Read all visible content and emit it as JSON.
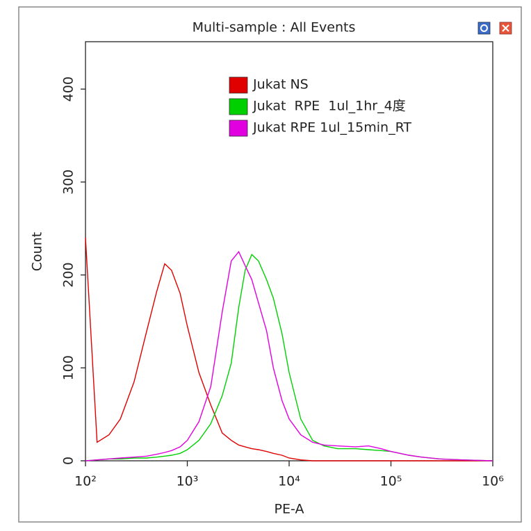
{
  "chart_data": {
    "type": "line",
    "title": "Multi-sample : All Events",
    "xlabel": "PE-A",
    "ylabel": "Count",
    "xscale": "log",
    "x": [
      100,
      130,
      170,
      220,
      300,
      400,
      500,
      600,
      700,
      850,
      1000,
      1300,
      1700,
      2200,
      2700,
      3200,
      3700,
      4300,
      5000,
      6000,
      7000,
      8500,
      10000,
      13000,
      17000,
      22000,
      30000,
      45000,
      60000,
      80000,
      100000,
      150000,
      200000,
      300000,
      500000,
      1000000
    ],
    "series": [
      {
        "name": "Jukat NS",
        "color": "#e00000",
        "values": [
          240,
          20,
          28,
          45,
          85,
          140,
          182,
          212,
          205,
          180,
          145,
          95,
          60,
          30,
          22,
          17,
          15,
          13,
          12,
          10,
          8,
          6,
          3,
          1,
          0,
          0,
          0,
          0,
          0,
          0,
          0,
          0,
          0,
          0,
          0,
          0
        ]
      },
      {
        "name": "Jukat  RPE  1ul_1hr_4度",
        "color": "#00d000",
        "values": [
          0,
          1,
          2,
          2,
          3,
          3,
          4,
          5,
          6,
          8,
          12,
          22,
          40,
          70,
          105,
          165,
          205,
          222,
          215,
          195,
          175,
          137,
          95,
          45,
          22,
          16,
          13,
          13,
          12,
          11,
          10,
          6,
          4,
          2,
          1,
          0
        ]
      },
      {
        "name": "Jukat RPE 1ul_15min_RT",
        "color": "#e000e0",
        "values": [
          0,
          1,
          2,
          3,
          4,
          5,
          7,
          9,
          11,
          15,
          22,
          42,
          80,
          160,
          215,
          225,
          210,
          195,
          170,
          140,
          100,
          65,
          45,
          28,
          20,
          17,
          16,
          15,
          16,
          13,
          10,
          6,
          4,
          2,
          1,
          0
        ]
      }
    ],
    "xlim": [
      100,
      1000000
    ],
    "xticks": [
      {
        "value": 100,
        "label": "10²"
      },
      {
        "value": 1000,
        "label": "10³"
      },
      {
        "value": 10000,
        "label": "10⁴"
      },
      {
        "value": 100000,
        "label": "10⁵"
      },
      {
        "value": 1000000,
        "label": "10⁶"
      }
    ],
    "ylim": [
      0,
      451
    ],
    "yticks": [
      0,
      100,
      200,
      300,
      400
    ]
  }
}
